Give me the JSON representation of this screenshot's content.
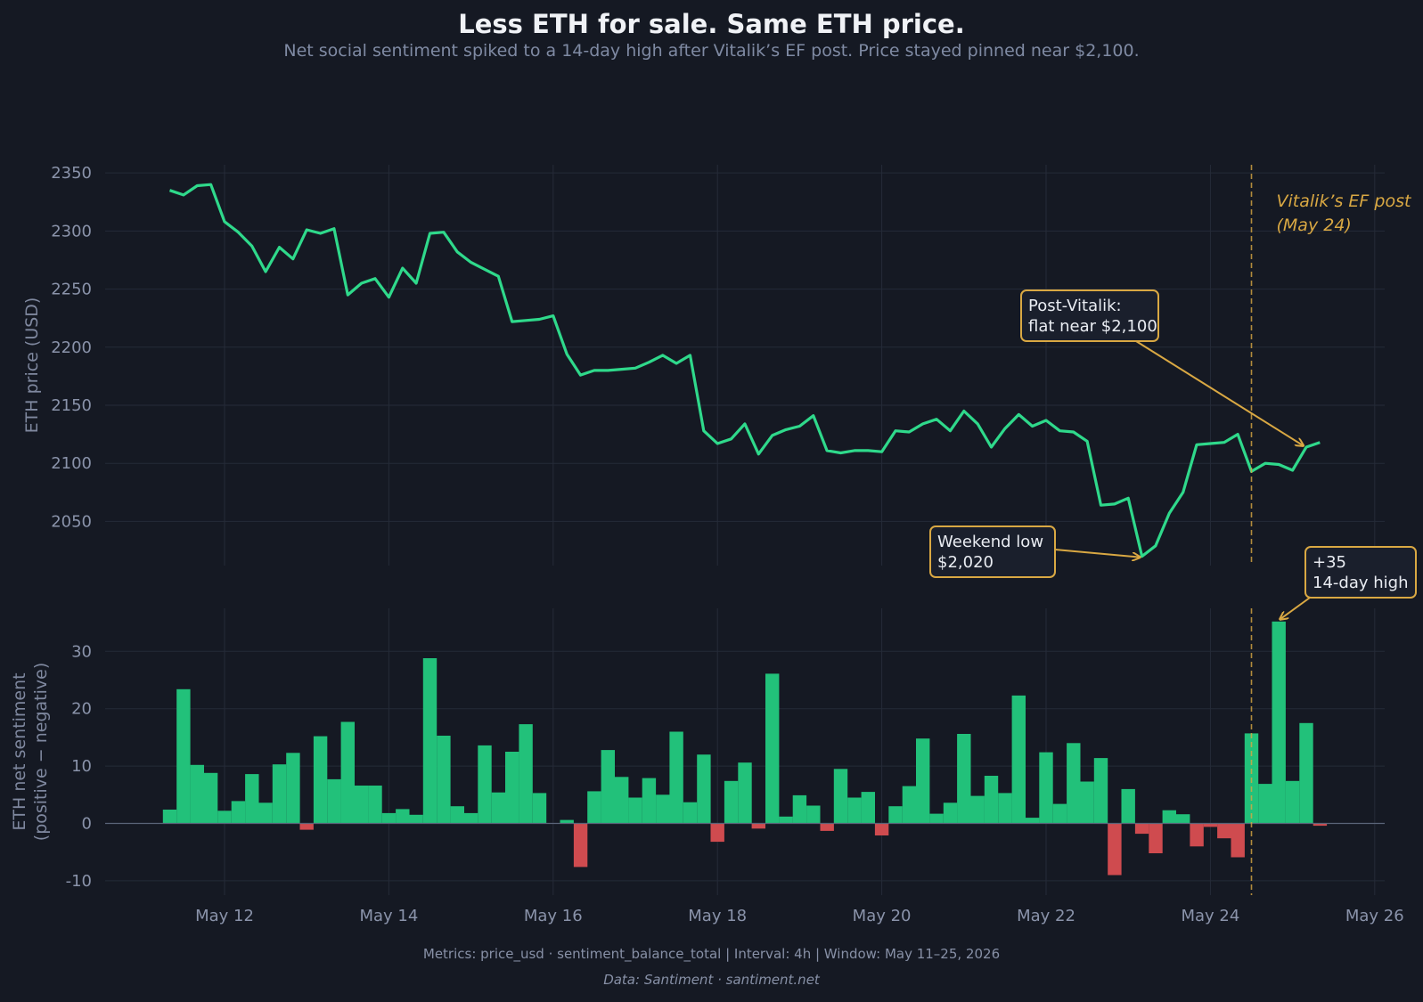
{
  "chart_data": {
    "type": "line+bar",
    "title": "Less ETH for sale. Same ETH price.",
    "subtitle": "Net social sentiment spiked to a 14-day high after Vitalik’s EF post. Price stayed pinned near $2,100.",
    "x_start": "2026-05-11T08:00",
    "interval_hours": 4,
    "x_ticks": [
      "May 12",
      "May 14",
      "May 16",
      "May 18",
      "May 20",
      "May 22",
      "May 24",
      "May 26"
    ],
    "grid": true,
    "colors": {
      "price_line": "#2fd98b",
      "positive_bar": "#22c17a",
      "negative_bar": "#cf4b4f",
      "annotation": "#d9a843",
      "background": "#151923"
    },
    "price_panel": {
      "ylabel": "ETH price (USD)",
      "yticks": [
        2050,
        2100,
        2150,
        2200,
        2250,
        2300,
        2350
      ],
      "ylim": [
        2012,
        2357
      ],
      "values": [
        2335,
        2331,
        2339,
        2340,
        2308,
        2299,
        2287,
        2265,
        2286,
        2276,
        2301,
        2298,
        2302,
        2245,
        2255,
        2259,
        2243,
        2268,
        2255,
        2298,
        2299,
        2282,
        2273,
        2267,
        2261,
        2222,
        2223,
        2224,
        2227,
        2194,
        2176,
        2180,
        2180,
        2181,
        2182,
        2187,
        2193,
        2186,
        2193,
        2128,
        2117,
        2121,
        2134,
        2108,
        2124,
        2129,
        2132,
        2141,
        2111,
        2109,
        2111,
        2111,
        2110,
        2128,
        2127,
        2134,
        2138,
        2128,
        2145,
        2134,
        2114,
        2130,
        2142,
        2132,
        2137,
        2128,
        2127,
        2119,
        2064,
        2065,
        2070,
        2020,
        2029,
        2057,
        2075,
        2116,
        2117,
        2118,
        2125,
        2093,
        2100,
        2099,
        2094,
        2114,
        2118
      ]
    },
    "sentiment_panel": {
      "ylabel_line1": "ETH net sentiment",
      "ylabel_line2": "(positive − negative)",
      "yticks": [
        -10,
        0,
        10,
        20,
        30
      ],
      "ylim": [
        -12.5,
        37.5
      ],
      "values": [
        2.4,
        23.4,
        10.2,
        8.8,
        2.2,
        3.9,
        8.6,
        3.6,
        10.3,
        12.3,
        -1.1,
        15.2,
        7.7,
        17.7,
        6.6,
        6.6,
        1.8,
        2.5,
        1.5,
        28.8,
        15.3,
        3.0,
        1.8,
        13.6,
        5.4,
        12.5,
        17.3,
        5.3,
        0,
        0.6,
        -7.6,
        5.6,
        12.8,
        8.1,
        4.5,
        7.9,
        5.0,
        16.0,
        3.7,
        12.0,
        -3.2,
        7.4,
        10.6,
        -0.9,
        26.1,
        1.2,
        4.9,
        3.1,
        -1.3,
        9.5,
        4.5,
        5.5,
        -2.1,
        3.0,
        6.5,
        14.8,
        1.7,
        3.6,
        15.6,
        4.8,
        8.3,
        5.3,
        22.3,
        1.0,
        12.4,
        3.4,
        14.0,
        7.3,
        11.4,
        -9.0,
        6.0,
        -1.8,
        -5.2,
        2.3,
        1.6,
        -4.0,
        -0.6,
        -2.6,
        -5.9,
        15.7,
        6.9,
        35.2,
        7.4,
        17.5,
        -0.4
      ]
    },
    "event": {
      "label_line1": "Vitalik’s EF post",
      "label_line2": "(May 24)",
      "x": "2026-05-24T12:00"
    },
    "annotations": [
      {
        "id": "weekend-low",
        "line1": "Weekend low",
        "line2": "$2,020",
        "x": "2026-05-23T04:00",
        "y": 2020
      },
      {
        "id": "post-vitalik",
        "line1": "Post-Vitalik:",
        "line2": "flat near $2,100",
        "x": "2026-05-25T04:00",
        "y": 2114
      },
      {
        "id": "sentiment-high",
        "line1": "+35",
        "line2": "14-day high",
        "x": "2026-05-24T20:00",
        "y": 35.2
      }
    ],
    "footer_metrics": "Metrics: price_usd · sentiment_balance_total  |  Interval: 4h  |  Window: May 11–25, 2026",
    "footer_source": "Data: Santiment · santiment.net"
  }
}
